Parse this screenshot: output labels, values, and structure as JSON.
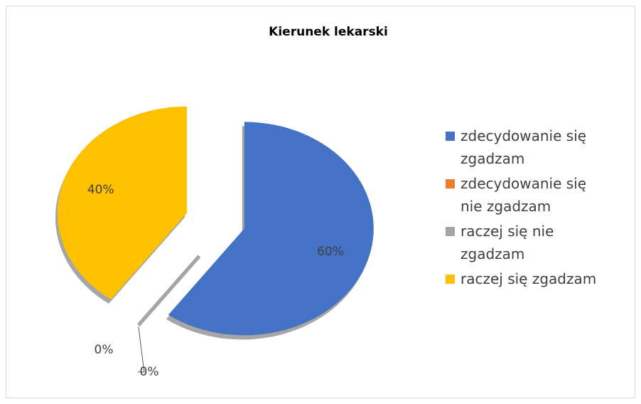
{
  "chart_data": {
    "type": "pie",
    "title": "Kierunek lekarski",
    "categories": [
      "zdecydowanie się zgadzam",
      "zdecydowanie się nie zgadzam",
      "raczej się nie zgadzam",
      "raczej się zgadzam"
    ],
    "values": [
      60,
      0,
      0,
      40
    ],
    "value_labels": [
      "60%",
      "0%",
      "0%",
      "40%"
    ],
    "colors": [
      "#4472c4",
      "#ed7d31",
      "#a5a5a5",
      "#ffc000"
    ],
    "legend": "right"
  }
}
